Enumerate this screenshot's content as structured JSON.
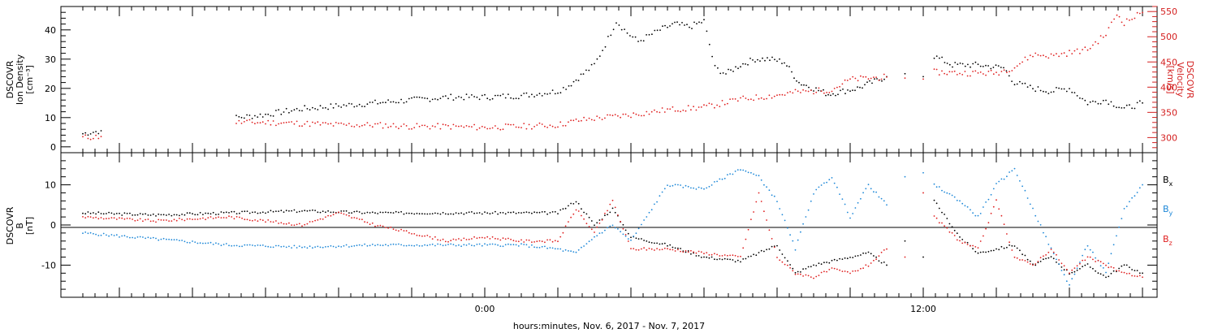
{
  "chart_data": [
    {
      "type": "scatter",
      "panel": "top",
      "y_title_lines": [
        "DSCOVR",
        "Ion Density",
        "[cm⁻³]"
      ],
      "y2_title_lines": [
        "DSCOVR",
        "Velocity",
        "[km/s]"
      ],
      "ylim": [
        -2,
        48
      ],
      "y2lim": [
        270,
        560
      ],
      "y_ticks": [
        0,
        10,
        20,
        30,
        40
      ],
      "y2_ticks": [
        300,
        350,
        400,
        450,
        500,
        550
      ],
      "series": [
        {
          "name": "",
          "axis": "left",
          "color": "#000000",
          "x": [
            -11.0,
            -10.5,
            -6.8,
            -6.0,
            -5.0,
            -4.0,
            -3.0,
            -2.0,
            -1.0,
            0.0,
            1.0,
            2.0,
            2.3,
            2.7,
            3.0,
            3.3,
            3.6,
            3.9,
            4.2,
            4.5,
            4.8,
            5.2,
            5.6,
            6.0,
            6.3,
            6.6,
            7.0,
            7.4,
            7.8,
            8.2,
            8.6,
            9.0,
            9.4,
            9.8,
            10.2,
            10.6,
            11.0,
            11.5,
            12.0,
            12.3,
            12.8,
            13.5,
            14.2,
            14.5,
            15.0,
            15.5,
            16.0,
            16.5,
            17.0,
            17.5,
            18.0
          ],
          "y": [
            4.5,
            5.5,
            10,
            11,
            13,
            14,
            15,
            16,
            17,
            17,
            17.5,
            19,
            21,
            25,
            28,
            35,
            43,
            39,
            36,
            38,
            40,
            42,
            41,
            43,
            27,
            25,
            28,
            30,
            30,
            29,
            22,
            20,
            18,
            19,
            20,
            22,
            24,
            25,
            24,
            31,
            28,
            28,
            27,
            22,
            20,
            19,
            20,
            15,
            16,
            13,
            15
          ]
        },
        {
          "name": "",
          "axis": "right",
          "color": "#e02020",
          "x": [
            -11.0,
            -10.5,
            -6.8,
            -6.0,
            -5.0,
            -4.0,
            -3.0,
            -2.0,
            -1.0,
            0.0,
            1.0,
            2.0,
            2.5,
            3.0,
            4.0,
            5.0,
            6.0,
            7.0,
            8.0,
            8.5,
            9.0,
            9.5,
            10.0,
            10.5,
            11.0,
            11.5,
            12.0,
            12.3,
            13.0,
            14.0,
            14.5,
            15.0,
            15.5,
            16.0,
            16.5,
            17.0,
            17.3,
            17.5,
            18.0
          ],
          "y": [
            300,
            302,
            330,
            330,
            328,
            325,
            325,
            322,
            322,
            320,
            322,
            325,
            333,
            338,
            345,
            355,
            360,
            376,
            384,
            390,
            392,
            395,
            415,
            418,
            420,
            418,
            416,
            430,
            428,
            428,
            440,
            465,
            462,
            468,
            475,
            505,
            545,
            528,
            548
          ]
        }
      ]
    },
    {
      "type": "scatter",
      "panel": "bottom",
      "y_title_lines": [
        "DSCOVR",
        "B",
        "[nT]"
      ],
      "ylim": [
        -18,
        18
      ],
      "y_ticks": [
        -10,
        0,
        10
      ],
      "zero_line": true,
      "legend_position": "right",
      "series": [
        {
          "name": "B",
          "subscript": "x",
          "color": "#000000",
          "x": [
            -11.0,
            -9.0,
            -7.0,
            -5.0,
            -3.0,
            -1.0,
            1.0,
            2.0,
            2.5,
            3.0,
            3.5,
            4.0,
            5.0,
            6.0,
            7.0,
            8.0,
            8.5,
            9.0,
            10.0,
            10.5,
            11.0,
            11.5,
            12.0,
            12.3,
            13.0,
            13.5,
            14.0,
            14.5,
            15.0,
            15.5,
            16.0,
            16.5,
            17.0,
            17.5,
            18.0
          ],
          "y": [
            3,
            2.5,
            3,
            3.5,
            3,
            3,
            3,
            3,
            6,
            0,
            4,
            -3,
            -5,
            -8,
            -9,
            -5,
            -12,
            -10,
            -8,
            -7,
            -10,
            -4,
            -8,
            6,
            -3,
            -7,
            -6,
            -5,
            -10,
            -8,
            -12,
            -10,
            -13,
            -10,
            -12
          ]
        },
        {
          "name": "B",
          "subscript": "y",
          "color": "#1e88d8",
          "x": [
            -11.0,
            -9.0,
            -7.0,
            -5.0,
            -3.0,
            -1.0,
            1.0,
            2.0,
            2.5,
            3.0,
            3.5,
            4.0,
            5.0,
            6.0,
            7.0,
            7.5,
            8.0,
            8.5,
            9.0,
            9.5,
            10.0,
            10.5,
            11.0,
            11.5,
            12.0,
            12.3,
            13.0,
            13.5,
            14.0,
            14.5,
            15.0,
            15.5,
            16.0,
            16.5,
            17.0,
            17.5,
            18.0
          ],
          "y": [
            -2,
            -3.5,
            -5,
            -5.5,
            -5,
            -5,
            -5,
            -6,
            -7,
            -3,
            0,
            -4,
            10,
            9,
            14,
            12,
            6,
            -6,
            8,
            12,
            2,
            10,
            5,
            12,
            13,
            10,
            6,
            2,
            10,
            14,
            4,
            -6,
            -15,
            -5,
            -12,
            4,
            10
          ]
        },
        {
          "name": "B",
          "subscript": "z",
          "color": "#e02020",
          "x": [
            -11.0,
            -9.0,
            -7.0,
            -5.0,
            -4.0,
            -3.0,
            -2.0,
            -1.0,
            0.0,
            1.0,
            2.0,
            2.5,
            3.0,
            3.5,
            4.0,
            5.0,
            6.0,
            7.0,
            7.5,
            8.0,
            8.5,
            9.0,
            9.5,
            10.0,
            10.5,
            11.0,
            11.5,
            12.0,
            12.3,
            13.0,
            13.5,
            14.0,
            14.5,
            15.0,
            15.5,
            16.0,
            16.5,
            17.0,
            17.5,
            18.0
          ],
          "y": [
            2,
            1,
            2,
            0,
            3,
            0,
            -2,
            -4,
            -3,
            -4,
            -4,
            4,
            -2,
            6,
            -6,
            -6,
            -7,
            -8,
            8,
            -8,
            -12,
            -13,
            -11,
            -12,
            -10,
            -6,
            -8,
            8,
            2,
            -4,
            -6,
            6,
            -8,
            -10,
            -6,
            -12,
            -8,
            -10,
            -12,
            -13
          ]
        }
      ]
    }
  ],
  "time_axis": {
    "title": "hours:minutes, Nov.  6, 2017 - Nov.  7, 2017",
    "xlim": [
      -11.6,
      18.4
    ],
    "major_labels": [
      {
        "t": 0,
        "label": "0:00"
      },
      {
        "t": 12,
        "label": "12:00"
      }
    ],
    "major_every": 2,
    "minor_every": 0.333
  },
  "colors": {
    "black": "#000000",
    "red": "#e02020",
    "blue": "#1e88d8"
  }
}
